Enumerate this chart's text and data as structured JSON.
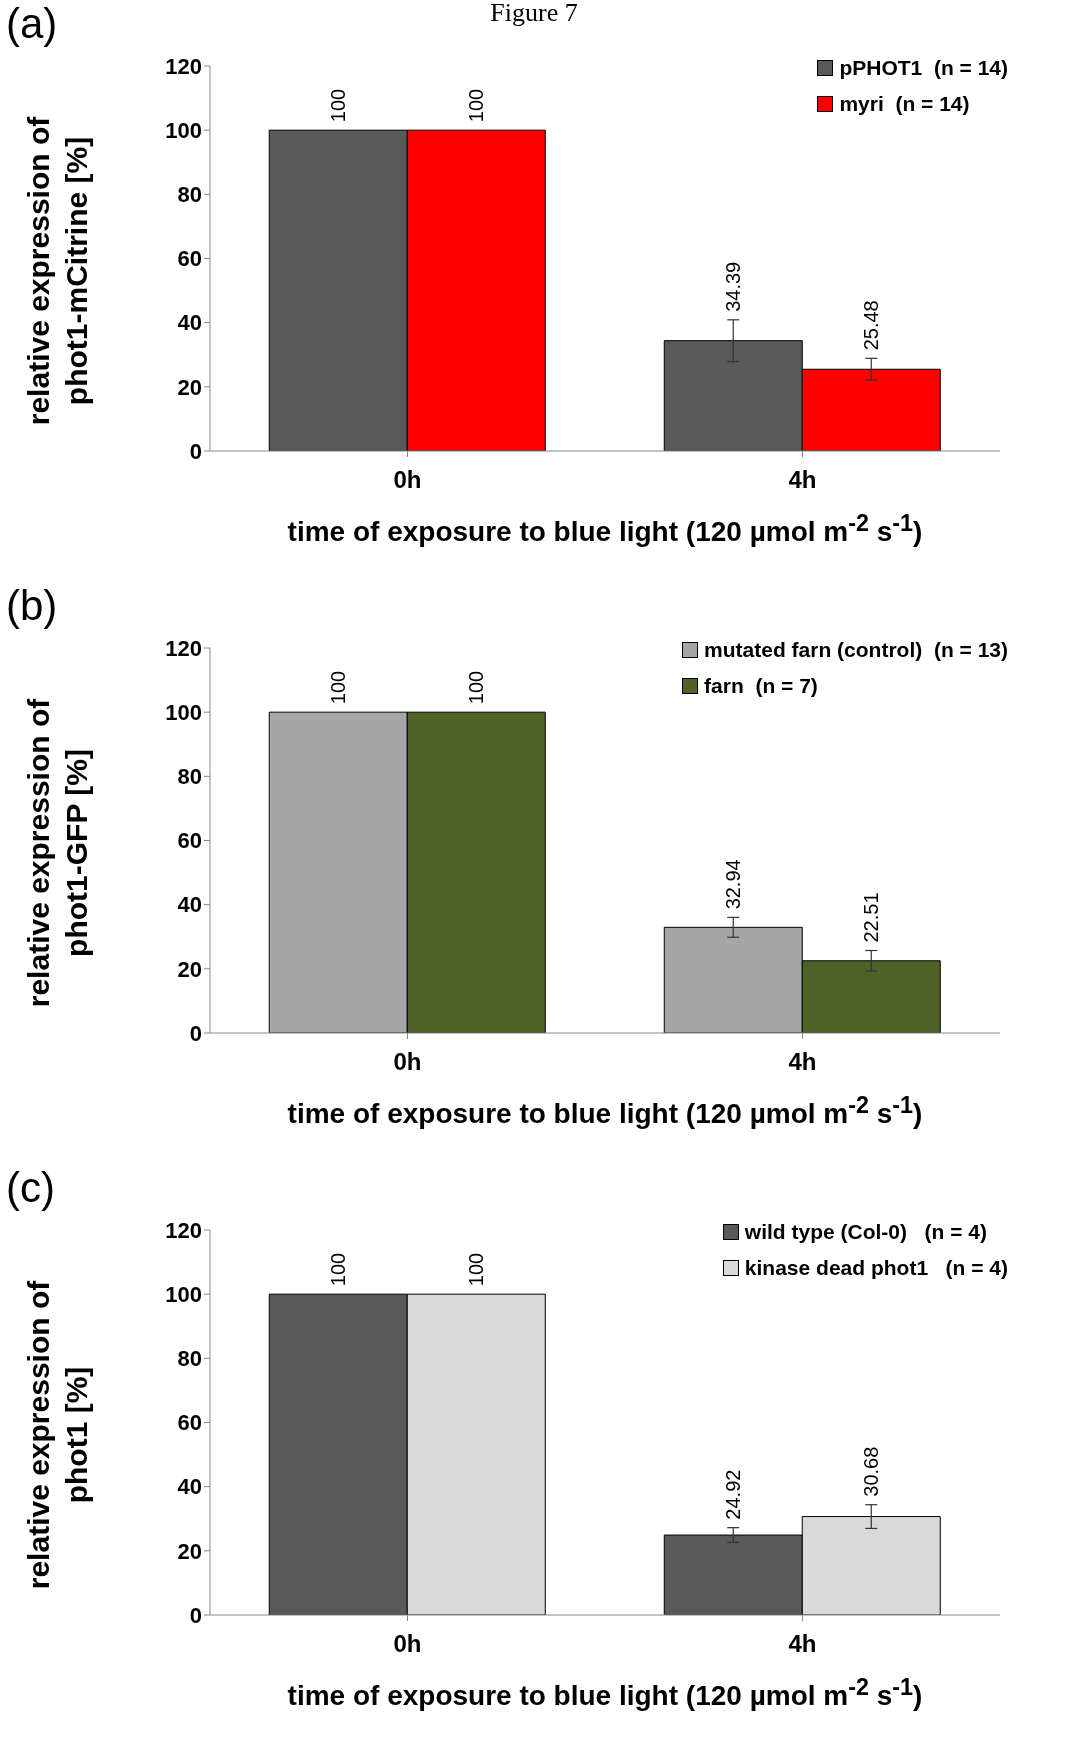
{
  "chart_data": [
    {
      "type": "bar",
      "annotations": [
        "Figure 7",
        "(a)"
      ],
      "ylabel": "relative expression of\nphot1-mCitrine [%]",
      "xlabel": "time of exposure to blue light (120 µmol m$^{-2}$ s$^{-1}$)",
      "categories": [
        "0h",
        "4h"
      ],
      "ylim": [
        0,
        120
      ],
      "yticks": [
        0,
        20,
        40,
        60,
        80,
        100,
        120
      ],
      "data_labels": true,
      "legend": "top right",
      "series": [
        {
          "name": "pPHOT1  (n = 14)",
          "color": "#595959",
          "values": [
            100,
            34.39
          ],
          "errors": [
            null,
            6.5
          ]
        },
        {
          "name": "myri  (n = 14)",
          "color": "#ff0000",
          "values": [
            100,
            25.48
          ],
          "errors": [
            null,
            3.4
          ]
        }
      ]
    },
    {
      "type": "bar",
      "annotations": [
        "(b)"
      ],
      "ylabel": "relative expression of\nphot1-GFP [%]",
      "xlabel": "time of exposure to blue light (120 µmol m$^{-2}$ s$^{-1}$)",
      "categories": [
        "0h",
        "4h"
      ],
      "ylim": [
        0,
        120
      ],
      "yticks": [
        0,
        20,
        40,
        60,
        80,
        100,
        120
      ],
      "data_labels": true,
      "legend": "top right",
      "series": [
        {
          "name": "mutated farn (control)  (n = 13)",
          "color": "#a6a6a6",
          "values": [
            100,
            32.94
          ],
          "errors": [
            null,
            3.1
          ]
        },
        {
          "name": "farn  (n = 7)",
          "color": "#4f6228",
          "values": [
            100,
            22.51
          ],
          "errors": [
            null,
            3.2
          ]
        }
      ]
    },
    {
      "type": "bar",
      "annotations": [
        "(c)"
      ],
      "ylabel": "relative expression of\nphot1 [%]",
      "xlabel": "time of exposure to blue light (120 µmol m$^{-2}$ s$^{-1}$)",
      "categories": [
        "0h",
        "4h"
      ],
      "ylim": [
        0,
        120
      ],
      "yticks": [
        0,
        20,
        40,
        60,
        80,
        100,
        120
      ],
      "data_labels": true,
      "legend": "top right",
      "series": [
        {
          "name": "wild type (Col-0)   (n = 4)",
          "color": "#595959",
          "values": [
            100,
            24.92
          ],
          "errors": [
            null,
            2.3
          ]
        },
        {
          "name": "kinase dead phot1   (n = 4)",
          "color": "#d9d9d9",
          "values": [
            100,
            30.68
          ],
          "errors": [
            null,
            3.7
          ]
        }
      ]
    }
  ]
}
